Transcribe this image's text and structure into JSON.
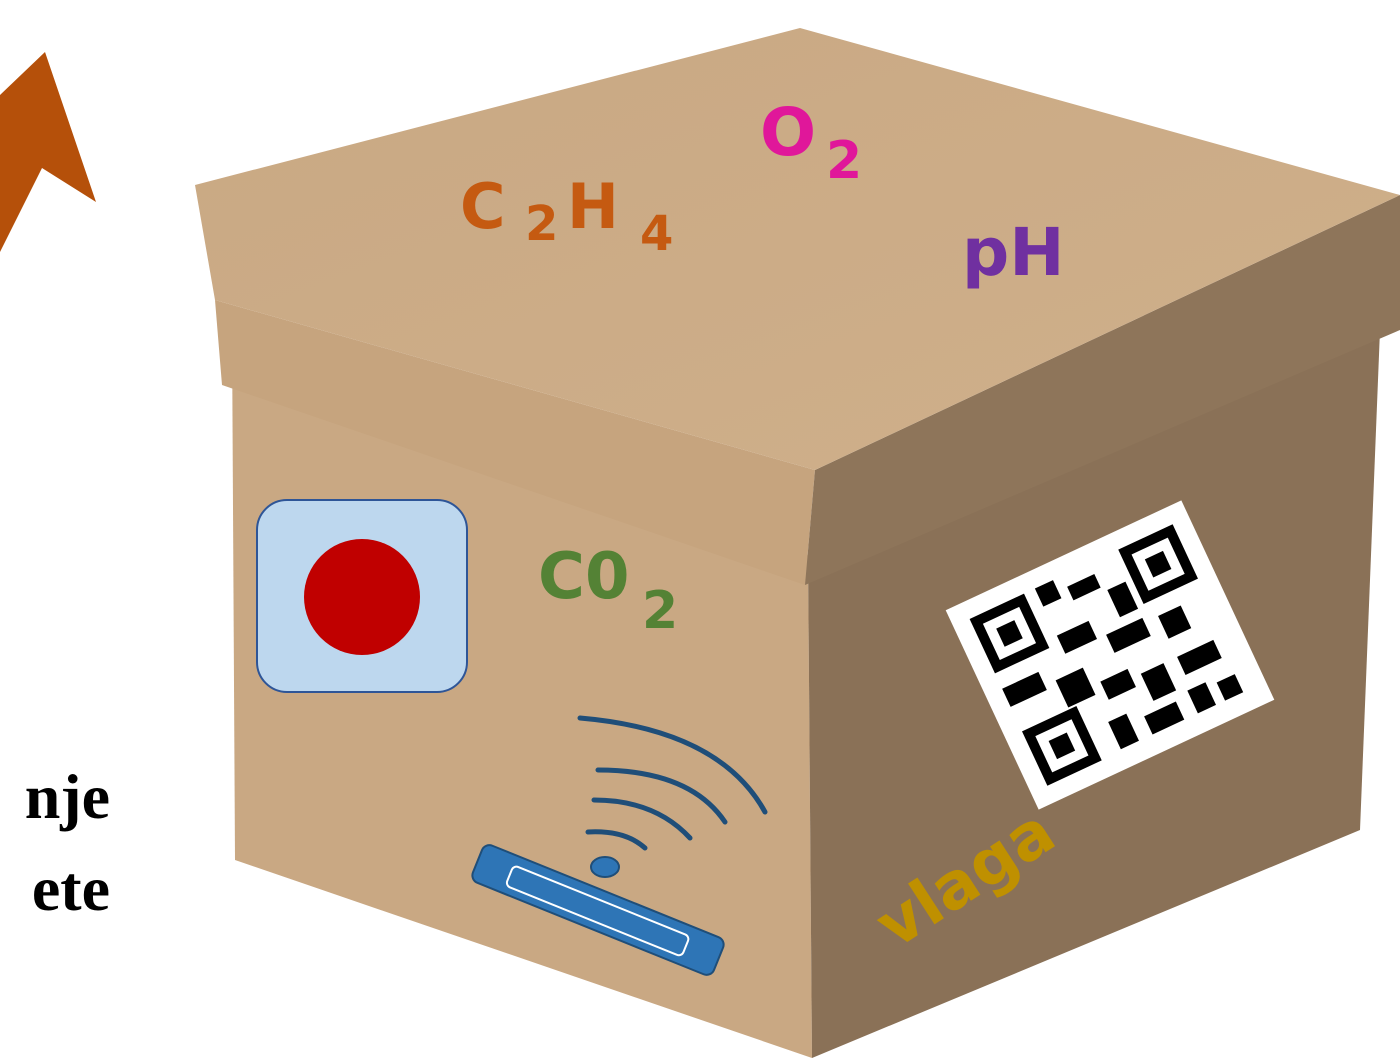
{
  "top_labels": {
    "ethylene": [
      "C",
      "2",
      "H",
      "4"
    ],
    "oxygen": [
      "O",
      "2"
    ],
    "ph": "pH"
  },
  "front_labels": {
    "carbon_dioxide": [
      "C0",
      "2"
    ]
  },
  "side_labels": {
    "humidity": "vlaga"
  },
  "left_text": [
    "nje",
    "ete"
  ]
}
